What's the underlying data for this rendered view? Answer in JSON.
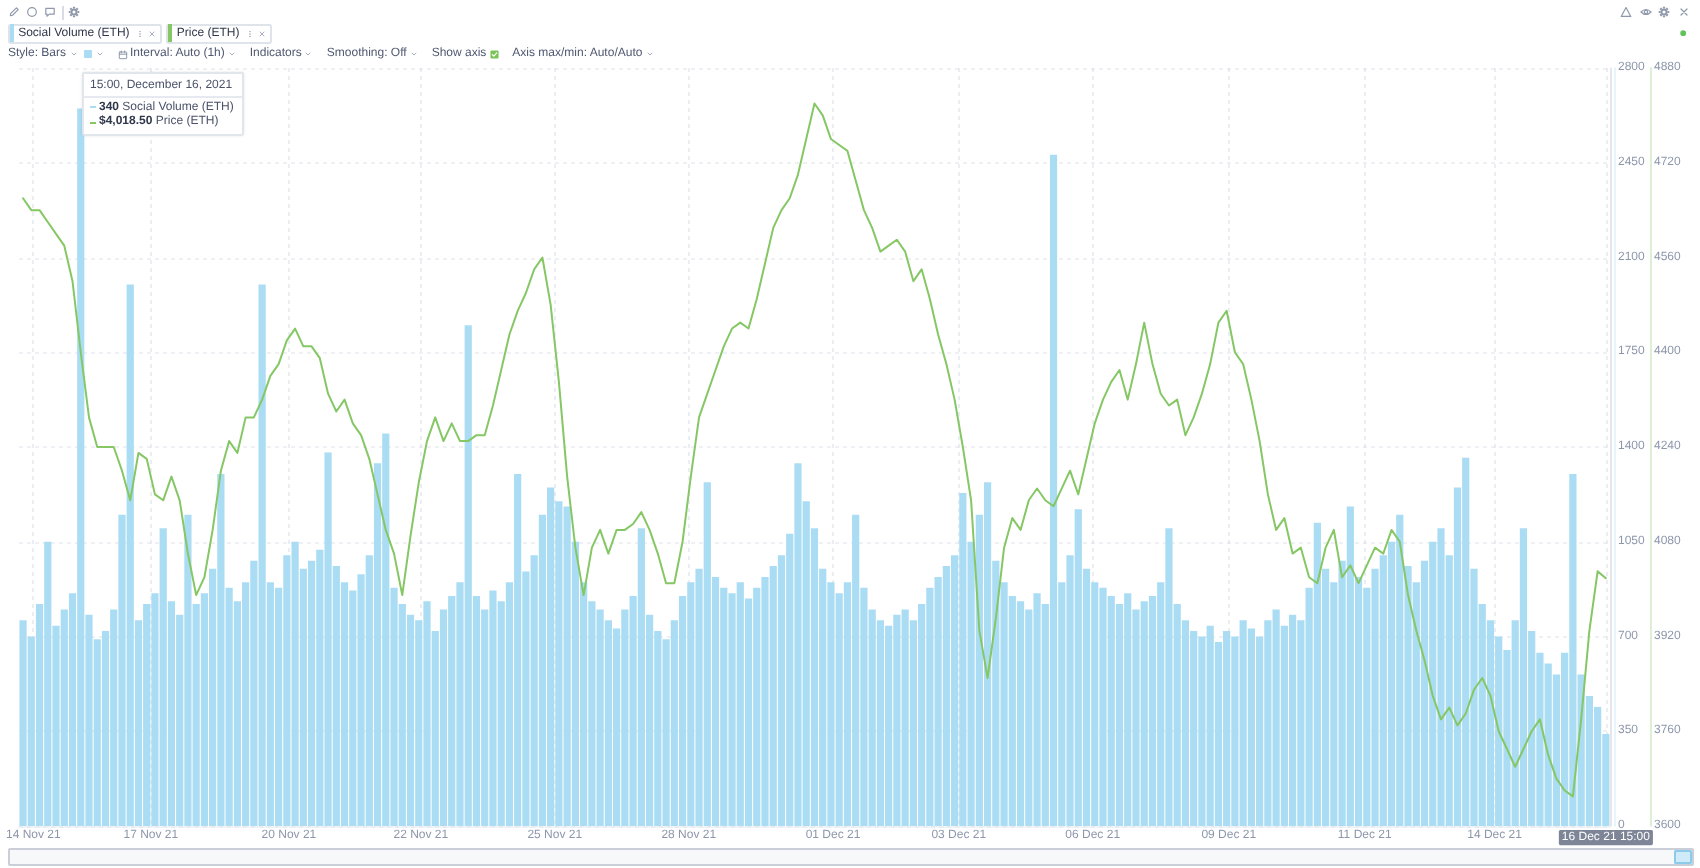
{
  "chart_data": {
    "type": "bar",
    "legend": "top left",
    "grid": true,
    "x": [
      "2021-11-14T15:00",
      "2021-11-14T19:00",
      "2021-11-14T23:00",
      "2021-11-15T03:00",
      "2021-11-15T07:00",
      "2021-11-15T11:00",
      "2021-11-15T15:00",
      "2021-11-15T19:00",
      "2021-11-15T23:00",
      "2021-11-16T03:00",
      "2021-11-16T07:00",
      "2021-11-16T11:00",
      "2021-11-16T15:00",
      "2021-11-16T19:00",
      "2021-11-16T23:00",
      "2021-11-17T03:00",
      "2021-11-17T07:00",
      "2021-11-17T11:00",
      "2021-11-17T15:00",
      "2021-11-17T19:00",
      "2021-11-17T23:00",
      "2021-11-18T03:00",
      "2021-11-18T07:00",
      "2021-11-18T11:00",
      "2021-11-18T15:00",
      "2021-11-18T19:00",
      "2021-11-18T23:00",
      "2021-11-19T03:00",
      "2021-11-19T07:00",
      "2021-11-19T11:00",
      "2021-11-19T15:00",
      "2021-11-19T19:00",
      "2021-11-19T23:00",
      "2021-11-20T03:00",
      "2021-11-20T07:00",
      "2021-11-20T11:00",
      "2021-11-20T15:00",
      "2021-11-20T19:00",
      "2021-11-20T23:00",
      "2021-11-21T03:00",
      "2021-11-21T07:00",
      "2021-11-21T11:00",
      "2021-11-21T15:00",
      "2021-11-21T19:00",
      "2021-11-21T23:00",
      "2021-11-22T03:00",
      "2021-11-22T07:00",
      "2021-11-22T11:00",
      "2021-11-22T15:00",
      "2021-11-22T19:00",
      "2021-11-22T23:00",
      "2021-11-23T03:00",
      "2021-11-23T07:00",
      "2021-11-23T11:00",
      "2021-11-23T15:00",
      "2021-11-23T19:00",
      "2021-11-23T23:00",
      "2021-11-24T03:00",
      "2021-11-24T07:00",
      "2021-11-24T11:00",
      "2021-11-24T15:00",
      "2021-11-24T19:00",
      "2021-11-24T23:00",
      "2021-11-25T03:00",
      "2021-11-25T07:00",
      "2021-11-25T11:00",
      "2021-11-25T15:00",
      "2021-11-25T19:00",
      "2021-11-25T23:00",
      "2021-11-26T03:00",
      "2021-11-26T07:00",
      "2021-11-26T11:00",
      "2021-11-26T15:00",
      "2021-11-26T19:00",
      "2021-11-26T23:00",
      "2021-11-27T03:00",
      "2021-11-27T07:00",
      "2021-11-27T11:00",
      "2021-11-27T15:00",
      "2021-11-27T19:00",
      "2021-11-27T23:00",
      "2021-11-28T03:00",
      "2021-11-28T07:00",
      "2021-11-28T11:00",
      "2021-11-28T15:00",
      "2021-11-28T19:00",
      "2021-11-28T23:00",
      "2021-11-29T03:00",
      "2021-11-29T07:00",
      "2021-11-29T11:00",
      "2021-11-29T15:00",
      "2021-11-29T19:00",
      "2021-11-29T23:00",
      "2021-11-30T03:00",
      "2021-11-30T07:00",
      "2021-11-30T11:00",
      "2021-11-30T15:00",
      "2021-11-30T19:00",
      "2021-11-30T23:00",
      "2021-12-01T03:00",
      "2021-12-01T07:00",
      "2021-12-01T11:00",
      "2021-12-01T15:00",
      "2021-12-01T19:00",
      "2021-12-01T23:00",
      "2021-12-02T03:00",
      "2021-12-02T07:00",
      "2021-12-02T11:00",
      "2021-12-02T15:00",
      "2021-12-02T19:00",
      "2021-12-02T23:00",
      "2021-12-03T03:00",
      "2021-12-03T07:00",
      "2021-12-03T11:00",
      "2021-12-03T15:00",
      "2021-12-03T19:00",
      "2021-12-03T23:00",
      "2021-12-04T03:00",
      "2021-12-04T07:00",
      "2021-12-04T11:00",
      "2021-12-04T15:00",
      "2021-12-04T19:00",
      "2021-12-04T23:00",
      "2021-12-05T03:00",
      "2021-12-05T07:00",
      "2021-12-05T11:00",
      "2021-12-05T15:00",
      "2021-12-05T19:00",
      "2021-12-05T23:00",
      "2021-12-06T03:00",
      "2021-12-06T07:00",
      "2021-12-06T11:00",
      "2021-12-06T15:00",
      "2021-12-06T19:00",
      "2021-12-06T23:00",
      "2021-12-07T03:00",
      "2021-12-07T07:00",
      "2021-12-07T11:00",
      "2021-12-07T15:00",
      "2021-12-07T19:00",
      "2021-12-07T23:00",
      "2021-12-08T03:00",
      "2021-12-08T07:00",
      "2021-12-08T11:00",
      "2021-12-08T15:00",
      "2021-12-08T19:00",
      "2021-12-08T23:00",
      "2021-12-09T03:00",
      "2021-12-09T07:00",
      "2021-12-09T11:00",
      "2021-12-09T15:00",
      "2021-12-09T19:00",
      "2021-12-09T23:00",
      "2021-12-10T03:00",
      "2021-12-10T07:00",
      "2021-12-10T11:00",
      "2021-12-10T15:00",
      "2021-12-10T19:00",
      "2021-12-10T23:00",
      "2021-12-11T03:00",
      "2021-12-11T07:00",
      "2021-12-11T11:00",
      "2021-12-11T15:00",
      "2021-12-11T19:00",
      "2021-12-11T23:00",
      "2021-12-12T03:00",
      "2021-12-12T07:00",
      "2021-12-12T11:00",
      "2021-12-12T15:00",
      "2021-12-12T19:00",
      "2021-12-12T23:00",
      "2021-12-13T03:00",
      "2021-12-13T07:00",
      "2021-12-13T11:00",
      "2021-12-13T15:00",
      "2021-12-13T19:00",
      "2021-12-13T23:00",
      "2021-12-14T03:00",
      "2021-12-14T07:00",
      "2021-12-14T11:00",
      "2021-12-14T15:00",
      "2021-12-14T19:00",
      "2021-12-14T23:00",
      "2021-12-15T03:00",
      "2021-12-15T07:00",
      "2021-12-15T11:00",
      "2021-12-15T15:00",
      "2021-12-15T19:00",
      "2021-12-15T23:00",
      "2021-12-16T03:00",
      "2021-12-16T07:00",
      "2021-12-16T11:00",
      "2021-12-16T15:00"
    ],
    "xlim": [
      "2021-11-14T13:00",
      "2021-12-16T17:00"
    ],
    "xticks": [
      {
        "value": "2021-11-14T20:00",
        "label": "14 Nov 21"
      },
      {
        "value": "2021-11-17T05:00",
        "label": "17 Nov 21"
      },
      {
        "value": "2021-11-20T00:00",
        "label": "20 Nov 21"
      },
      {
        "value": "2021-11-22T16:00",
        "label": "22 Nov 21"
      },
      {
        "value": "2021-11-25T09:00",
        "label": "25 Nov 21"
      },
      {
        "value": "2021-11-28T02:00",
        "label": "28 Nov 21"
      },
      {
        "value": "2021-12-01T00:00",
        "label": "01 Dec 21"
      },
      {
        "value": "2021-12-03T13:00",
        "label": "03 Dec 21"
      },
      {
        "value": "2021-12-06T06:00",
        "label": "06 Dec 21"
      },
      {
        "value": "2021-12-09T00:00",
        "label": "09 Dec 21"
      },
      {
        "value": "2021-12-11T18:00",
        "label": "11 Dec 21"
      },
      {
        "value": "2021-12-14T09:00",
        "label": "14 Dec 21"
      },
      {
        "value": "2021-12-16T15:00",
        "label": "16 Dec 21 15:00"
      }
    ],
    "ylim": [
      0,
      2800
    ],
    "yticks": [
      0,
      350,
      700,
      1050,
      1400,
      1750,
      2100,
      2450,
      2800
    ],
    "y2lim": [
      3600,
      4880
    ],
    "y2ticks": [
      3600,
      3760,
      3920,
      4080,
      4240,
      4400,
      4560,
      4720,
      4880
    ],
    "annotations": [
      "15:00, December 16, 2021",
      "340 Social Volume (ETH)",
      "$4,018.50 Price (ETH)",
      "Style: Bars",
      "Interval: Auto (1h)",
      "Indicators",
      "Smoothing: Off",
      "Show axis",
      "Axis max/min: Auto/Auto"
    ],
    "series": [
      {
        "name": "Social Volume (ETH)",
        "color": "#aadcf3",
        "values": [
          760,
          700,
          820,
          1050,
          740,
          800,
          860,
          2650,
          780,
          690,
          720,
          800,
          1150,
          2000,
          760,
          820,
          860,
          1100,
          830,
          780,
          1150,
          820,
          860,
          950,
          1300,
          880,
          830,
          900,
          980,
          2000,
          900,
          880,
          1000,
          1050,
          950,
          980,
          1020,
          1380,
          960,
          900,
          870,
          930,
          1000,
          1340,
          1450,
          880,
          820,
          780,
          760,
          830,
          720,
          800,
          850,
          900,
          1850,
          850,
          800,
          870,
          830,
          900,
          1300,
          940,
          1000,
          1150,
          1250,
          1200,
          1180,
          1050,
          900,
          830,
          800,
          760,
          730,
          800,
          850,
          1100,
          780,
          720,
          690,
          760,
          850,
          900,
          950,
          1270,
          920,
          880,
          860,
          900,
          840,
          880,
          920,
          960,
          1000,
          1080,
          1340,
          1200,
          1100,
          950,
          900,
          860,
          900,
          1150,
          880,
          800,
          760,
          740,
          780,
          800,
          760,
          820,
          880,
          920,
          960,
          1000,
          1230,
          1050,
          1150,
          1270,
          980,
          900,
          850,
          830,
          800,
          860,
          820,
          2480,
          900,
          1000,
          1170,
          950,
          900,
          880,
          850,
          820,
          860,
          800,
          830,
          850,
          900,
          1100,
          820,
          760,
          720,
          700,
          740,
          680,
          720,
          700,
          760,
          730,
          700,
          760,
          800,
          740,
          780,
          760,
          880,
          1120,
          950,
          900,
          980,
          1180,
          920,
          880,
          950,
          1000,
          1050,
          1150,
          960,
          900,
          980,
          1050,
          1100,
          1000,
          1250,
          1360,
          950,
          820,
          760,
          700,
          650,
          760,
          1100,
          720,
          640,
          600,
          560,
          640,
          1300,
          560,
          480,
          440,
          340
        ]
      },
      {
        "name": "Price (ETH)",
        "type": "line",
        "axis": "y2",
        "color": "#86c765",
        "values": [
          4660,
          4640,
          4640,
          4620,
          4600,
          4580,
          4520,
          4400,
          4290,
          4240,
          4240,
          4240,
          4200,
          4150,
          4230,
          4220,
          4160,
          4150,
          4190,
          4150,
          4060,
          3990,
          4020,
          4100,
          4200,
          4250,
          4230,
          4290,
          4290,
          4320,
          4360,
          4380,
          4420,
          4440,
          4410,
          4410,
          4390,
          4330,
          4300,
          4320,
          4280,
          4260,
          4220,
          4160,
          4100,
          4060,
          3990,
          4090,
          4180,
          4250,
          4290,
          4250,
          4280,
          4250,
          4250,
          4260,
          4260,
          4310,
          4370,
          4430,
          4470,
          4500,
          4540,
          4560,
          4480,
          4350,
          4190,
          4070,
          3990,
          4070,
          4100,
          4060,
          4100,
          4100,
          4110,
          4130,
          4100,
          4060,
          4010,
          4010,
          4080,
          4190,
          4290,
          4330,
          4370,
          4410,
          4440,
          4450,
          4440,
          4490,
          4550,
          4610,
          4640,
          4660,
          4700,
          4760,
          4820,
          4800,
          4760,
          4750,
          4740,
          4690,
          4640,
          4610,
          4570,
          4580,
          4590,
          4570,
          4520,
          4540,
          4490,
          4430,
          4380,
          4320,
          4240,
          4150,
          3930,
          3850,
          3950,
          4070,
          4120,
          4100,
          4150,
          4170,
          4150,
          4140,
          4170,
          4200,
          4160,
          4220,
          4280,
          4320,
          4350,
          4370,
          4320,
          4380,
          4450,
          4380,
          4330,
          4310,
          4320,
          4260,
          4290,
          4330,
          4380,
          4450,
          4470,
          4400,
          4380,
          4320,
          4250,
          4160,
          4100,
          4120,
          4060,
          4070,
          4020,
          4010,
          4070,
          4100,
          4020,
          4040,
          4010,
          4040,
          4070,
          4060,
          4100,
          4080,
          3990,
          3930,
          3880,
          3820,
          3780,
          3800,
          3770,
          3790,
          3830,
          3850,
          3820,
          3760,
          3730,
          3700,
          3730,
          3760,
          3780,
          3720,
          3680,
          3660,
          3650,
          3780,
          3930,
          4030,
          4018.5
        ]
      }
    ]
  }
}
